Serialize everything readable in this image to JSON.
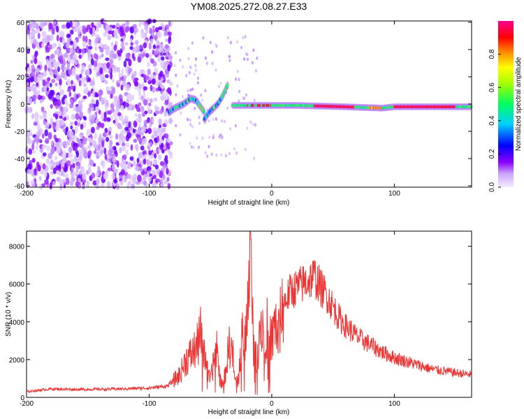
{
  "title": "YM08.2025.272.08.27.E33",
  "chart_data": [
    {
      "type": "heatmap",
      "xlabel": "Height of straight line (km)",
      "ylabel": "Frequency (Hz)",
      "xlim": [
        -200,
        163
      ],
      "ylim": [
        -61,
        61
      ],
      "x_ticks": [
        -200,
        -100,
        0,
        100
      ],
      "y_ticks": [
        -60,
        -40,
        -20,
        0,
        20,
        40,
        60
      ],
      "colorbar": {
        "label": "Normalized spectral amplitude",
        "range": [
          0,
          1
        ],
        "ticks": [
          0.0,
          0.2,
          0.4,
          0.6,
          0.8
        ]
      },
      "ridge_segments": [
        {
          "x": [
            -84,
            -79,
            -72,
            -66,
            -62,
            -58,
            -55
          ],
          "y": [
            -6,
            -3,
            0,
            4,
            3,
            -2,
            -6
          ]
        },
        {
          "x": [
            -55,
            -50,
            -44,
            -40,
            -36
          ],
          "y": [
            -11,
            -5,
            0,
            6,
            14
          ]
        },
        {
          "x": [
            -32,
            -10,
            20,
            60,
            90,
            100,
            130,
            163
          ],
          "y": [
            -1,
            -1,
            -1,
            -2,
            -3,
            -2,
            -2,
            -2
          ]
        }
      ]
    },
    {
      "type": "line",
      "xlabel": "Height of straight line (km)",
      "ylabel": "SNR (10 * v/v)",
      "xlim": [
        -200,
        163
      ],
      "ylim": [
        0,
        8800
      ],
      "x_ticks": [
        -200,
        -100,
        0,
        100
      ],
      "y_ticks": [
        0,
        2000,
        4000,
        6000,
        8000
      ],
      "series": [
        {
          "name": "SNR",
          "color": "#ee3333",
          "x": [
            -200,
            -180,
            -160,
            -140,
            -120,
            -100,
            -85,
            -75,
            -70,
            -65,
            -60,
            -58,
            -55,
            -52,
            -50,
            -47,
            -45,
            -42,
            -40,
            -37,
            -35,
            -32,
            -30,
            -27,
            -24,
            -22,
            -20,
            -18,
            -15,
            -12,
            -10,
            -8,
            -5,
            -2,
            0,
            3,
            5,
            8,
            10,
            15,
            20,
            25,
            30,
            35,
            40,
            45,
            50,
            55,
            60,
            70,
            80,
            90,
            100,
            110,
            120,
            130,
            140,
            150,
            163
          ],
          "y": [
            300,
            450,
            420,
            430,
            450,
            500,
            600,
            1200,
            2000,
            2300,
            2800,
            3400,
            2600,
            1200,
            900,
            2000,
            2500,
            900,
            600,
            1600,
            2800,
            2400,
            800,
            1000,
            3400,
            3000,
            4000,
            8800,
            3000,
            2000,
            3800,
            4000,
            3200,
            4400,
            2800,
            4200,
            3000,
            4600,
            5000,
            5600,
            5800,
            6000,
            6200,
            6400,
            5800,
            5400,
            4800,
            4200,
            3800,
            3200,
            2800,
            2400,
            2100,
            1900,
            1700,
            1500,
            1400,
            1300,
            1200
          ]
        }
      ]
    }
  ]
}
